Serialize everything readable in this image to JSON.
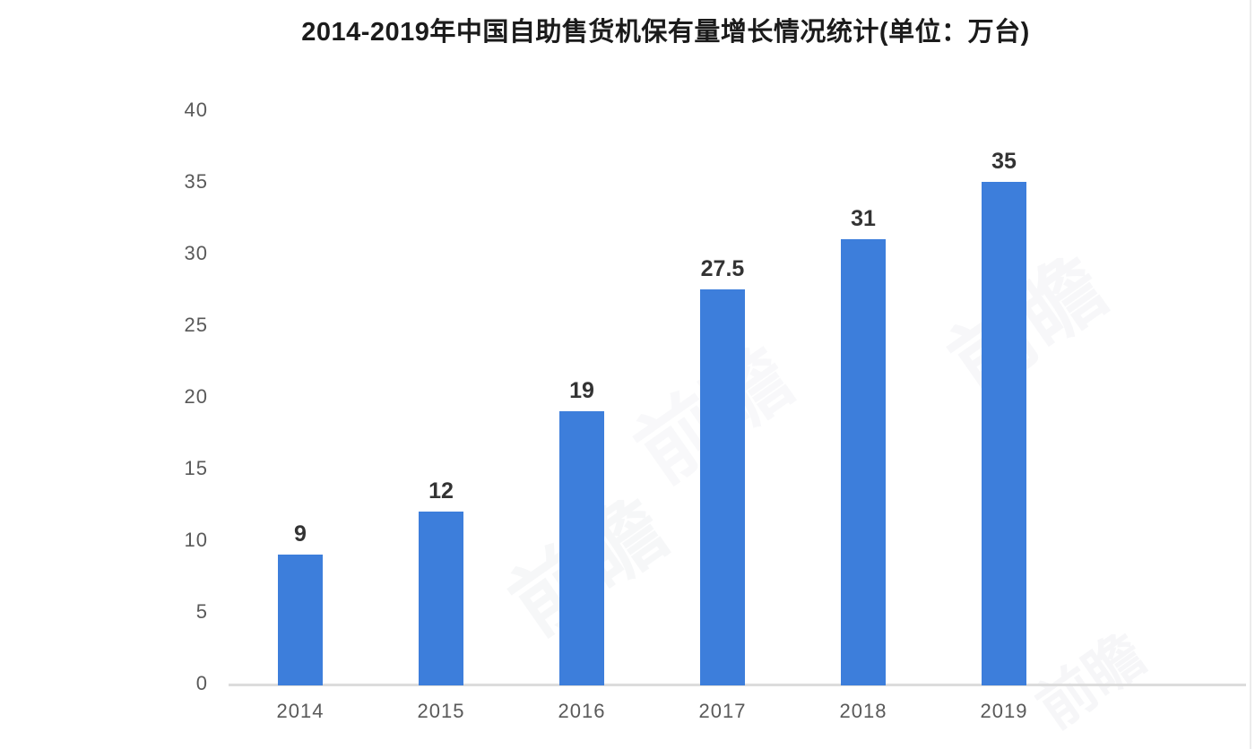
{
  "chart_data": {
    "type": "bar",
    "title": "2014-2019年中国自助售货机保有量增长情况统计(单位：万台)",
    "categories": [
      "2014",
      "2015",
      "2016",
      "2017",
      "2018",
      "2019"
    ],
    "values": [
      9,
      12,
      19,
      27.5,
      31,
      35
    ],
    "value_labels": [
      "9",
      "12",
      "19",
      "27.5",
      "31",
      "35"
    ],
    "series_name": "自助售货机保有量",
    "unit": "万台",
    "xlabel": "",
    "ylabel": "",
    "ylim": [
      0,
      40
    ],
    "yticks": [
      0,
      5,
      10,
      15,
      20,
      25,
      30,
      35,
      40
    ],
    "grid": false,
    "legend_position": "none",
    "bar_color": "#3d7edb"
  },
  "watermark": {
    "text": "前瞻"
  },
  "colors": {
    "bar": "#3d7edb",
    "axis_line": "#dcdcdc",
    "tick_label": "#595959",
    "value_label": "#333333",
    "title": "#1b1b1b",
    "background": "#ffffff"
  }
}
